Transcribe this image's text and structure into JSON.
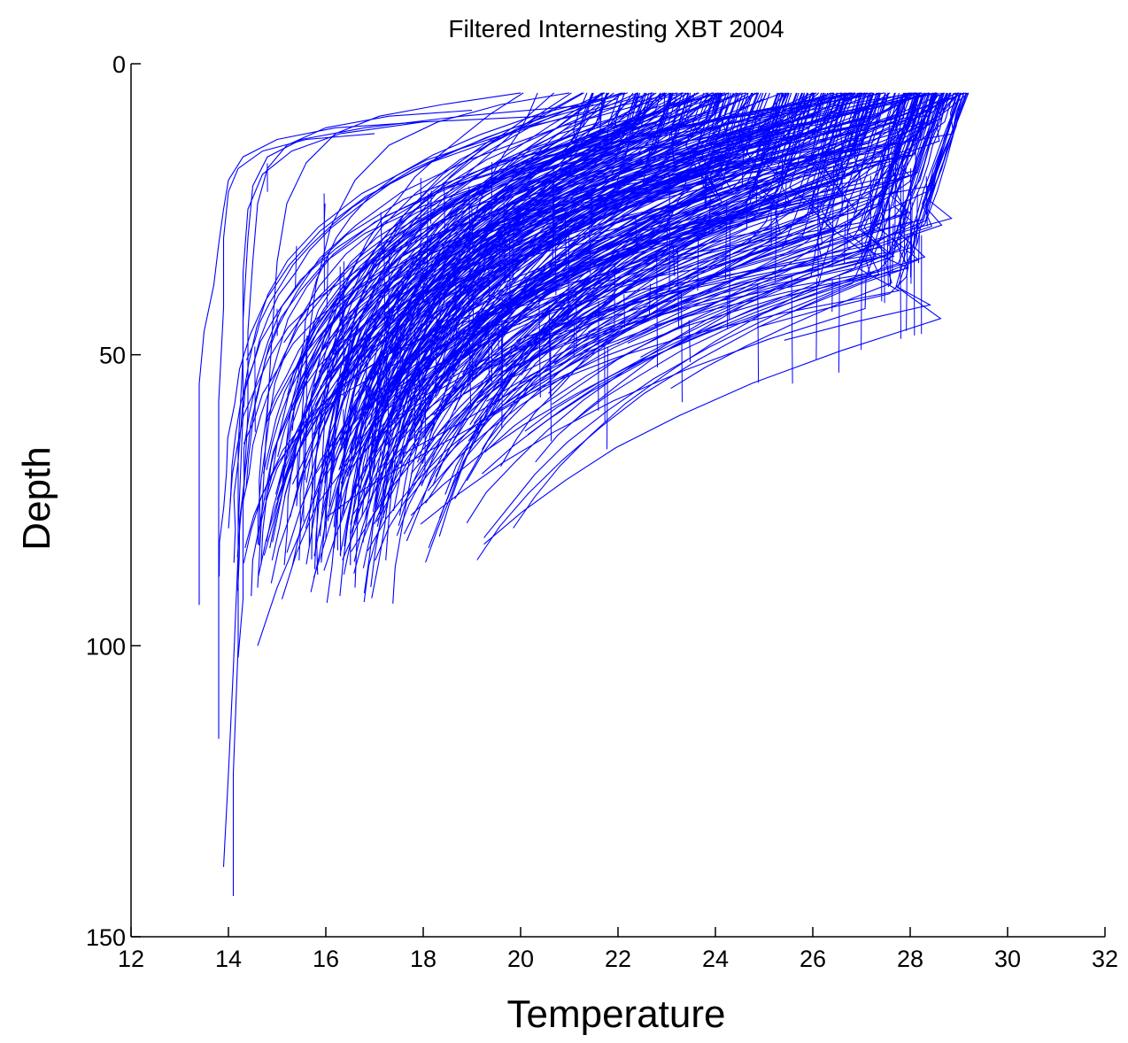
{
  "chart_data": {
    "type": "line",
    "title": "Filtered Internesting XBT 2004",
    "xlabel": "Temperature",
    "ylabel": "Depth",
    "xlim": [
      12,
      32
    ],
    "ylim": [
      0,
      150
    ],
    "y_reversed": true,
    "xticks": [
      12,
      14,
      16,
      18,
      20,
      22,
      24,
      26,
      28,
      30,
      32
    ],
    "yticks": [
      0,
      50,
      100,
      150
    ],
    "grid": false,
    "legend": "none",
    "line_color": "#0000ff",
    "series_count_estimate": 350,
    "series": [
      {
        "points": [
          [
            29.2,
            5
          ],
          [
            28.6,
            9
          ],
          [
            27.4,
            14
          ],
          [
            25.8,
            20
          ],
          [
            23.6,
            30
          ],
          [
            21.8,
            38
          ],
          [
            19.6,
            46
          ],
          [
            18.0,
            53
          ],
          [
            16.6,
            60
          ],
          [
            15.9,
            68
          ],
          [
            15.5,
            76
          ],
          [
            15.2,
            84
          ]
        ]
      },
      {
        "points": [
          [
            29.0,
            5
          ],
          [
            28.3,
            11
          ],
          [
            27.2,
            18
          ],
          [
            25.9,
            26
          ],
          [
            24.1,
            36
          ],
          [
            22.1,
            46
          ],
          [
            20.6,
            54
          ],
          [
            19.1,
            62
          ],
          [
            17.8,
            68
          ],
          [
            16.8,
            73
          ],
          [
            16.0,
            78
          ]
        ]
      },
      {
        "points": [
          [
            28.8,
            6
          ],
          [
            27.9,
            12
          ],
          [
            26.7,
            19
          ],
          [
            25.1,
            28
          ],
          [
            23.2,
            38
          ],
          [
            21.4,
            48
          ],
          [
            19.9,
            56
          ],
          [
            18.7,
            62
          ],
          [
            17.6,
            67
          ]
        ]
      },
      {
        "points": [
          [
            28.5,
            6
          ],
          [
            27.6,
            14
          ],
          [
            26.5,
            22
          ],
          [
            25.2,
            30
          ],
          [
            23.8,
            37
          ],
          [
            22.4,
            43
          ],
          [
            21.0,
            49
          ],
          [
            19.8,
            54
          ]
        ]
      },
      {
        "points": [
          [
            27.5,
            6
          ],
          [
            26.6,
            12
          ],
          [
            25.4,
            19
          ],
          [
            24.1,
            27
          ],
          [
            22.7,
            35
          ],
          [
            21.3,
            42
          ],
          [
            20.1,
            48
          ],
          [
            19.2,
            53
          ]
        ]
      },
      {
        "points": [
          [
            26.2,
            6
          ],
          [
            25.1,
            12
          ],
          [
            23.9,
            19
          ],
          [
            22.6,
            27
          ],
          [
            21.1,
            35
          ],
          [
            19.8,
            42
          ],
          [
            18.9,
            48
          ],
          [
            18.3,
            53
          ]
        ]
      },
      {
        "points": [
          [
            25.0,
            6
          ],
          [
            23.8,
            11
          ],
          [
            22.4,
            17
          ],
          [
            21.0,
            25
          ],
          [
            19.8,
            33
          ],
          [
            18.9,
            41
          ],
          [
            18.3,
            49
          ],
          [
            17.9,
            56
          ]
        ]
      },
      {
        "points": [
          [
            23.5,
            6
          ],
          [
            22.2,
            10
          ],
          [
            20.9,
            15
          ],
          [
            19.6,
            22
          ],
          [
            18.6,
            30
          ],
          [
            17.9,
            38
          ],
          [
            17.4,
            46
          ],
          [
            17.1,
            54
          ],
          [
            16.9,
            62
          ]
        ]
      },
      {
        "points": [
          [
            22.0,
            6
          ],
          [
            20.7,
            9
          ],
          [
            19.4,
            13
          ],
          [
            18.4,
            19
          ],
          [
            17.6,
            26
          ],
          [
            17.0,
            34
          ],
          [
            16.6,
            43
          ],
          [
            16.4,
            52
          ],
          [
            16.2,
            62
          ],
          [
            16.1,
            72
          ]
        ]
      },
      {
        "points": [
          [
            21.0,
            5
          ],
          [
            19.6,
            7
          ],
          [
            18.3,
            10
          ],
          [
            17.3,
            14
          ],
          [
            16.6,
            20
          ],
          [
            16.1,
            28
          ],
          [
            15.8,
            38
          ],
          [
            15.6,
            50
          ],
          [
            15.5,
            62
          ],
          [
            15.4,
            76
          ]
        ]
      },
      {
        "points": [
          [
            20.0,
            5
          ],
          [
            18.4,
            7
          ],
          [
            17.1,
            9
          ],
          [
            16.2,
            12
          ],
          [
            15.6,
            17
          ],
          [
            15.2,
            24
          ],
          [
            15.0,
            34
          ],
          [
            14.9,
            46
          ],
          [
            14.8,
            60
          ],
          [
            14.7,
            75
          ],
          [
            14.6,
            90
          ]
        ]
      },
      {
        "points": [
          [
            19.0,
            8
          ],
          [
            17.3,
            9
          ],
          [
            16.0,
            11
          ],
          [
            15.2,
            14
          ],
          [
            14.8,
            18
          ],
          [
            14.6,
            24
          ],
          [
            14.5,
            34
          ],
          [
            14.4,
            46
          ],
          [
            14.4,
            60
          ],
          [
            14.3,
            76
          ],
          [
            14.3,
            92
          ],
          [
            14.2,
            102
          ]
        ]
      },
      {
        "points": [
          [
            20.5,
            9
          ],
          [
            18.0,
            10
          ],
          [
            16.3,
            12
          ],
          [
            15.3,
            15
          ],
          [
            14.7,
            19
          ],
          [
            14.4,
            25
          ],
          [
            14.3,
            36
          ],
          [
            14.3,
            50
          ],
          [
            14.2,
            66
          ],
          [
            14.2,
            84
          ],
          [
            14.1,
            104
          ],
          [
            14.0,
            122
          ],
          [
            13.9,
            138
          ]
        ]
      },
      {
        "points": [
          [
            21.5,
            7
          ],
          [
            18.8,
            9
          ],
          [
            16.8,
            11
          ],
          [
            15.5,
            13
          ],
          [
            14.8,
            16
          ],
          [
            14.5,
            21
          ],
          [
            14.4,
            30
          ],
          [
            14.3,
            44
          ],
          [
            14.3,
            60
          ],
          [
            14.2,
            80
          ],
          [
            14.2,
            100
          ],
          [
            14.1,
            122
          ],
          [
            14.1,
            143
          ]
        ]
      },
      {
        "points": [
          [
            18.0,
            10
          ],
          [
            16.2,
            11
          ],
          [
            15.0,
            13
          ],
          [
            14.3,
            16
          ],
          [
            14.0,
            20
          ],
          [
            13.9,
            25
          ],
          [
            13.8,
            31
          ],
          [
            13.7,
            38
          ],
          [
            13.5,
            46
          ],
          [
            13.4,
            55
          ],
          [
            13.4,
            66
          ],
          [
            13.4,
            78
          ],
          [
            13.4,
            93
          ]
        ]
      },
      {
        "points": [
          [
            17.0,
            12
          ],
          [
            15.6,
            13
          ],
          [
            14.7,
            15
          ],
          [
            14.2,
            18
          ],
          [
            14.0,
            22
          ],
          [
            13.9,
            30
          ],
          [
            13.9,
            42
          ],
          [
            13.8,
            58
          ],
          [
            13.8,
            76
          ],
          [
            13.8,
            96
          ],
          [
            13.8,
            116
          ]
        ]
      },
      {
        "points": [
          [
            27.0,
            5
          ],
          [
            25.0,
            8
          ],
          [
            22.5,
            12
          ],
          [
            20.2,
            18
          ],
          [
            18.5,
            25
          ],
          [
            17.4,
            34
          ],
          [
            16.7,
            44
          ],
          [
            16.3,
            55
          ],
          [
            16.0,
            66
          ],
          [
            15.8,
            76
          ],
          [
            15.6,
            86
          ]
        ]
      },
      {
        "points": [
          [
            28.0,
            5
          ],
          [
            26.0,
            9
          ],
          [
            23.5,
            15
          ],
          [
            21.2,
            23
          ],
          [
            19.4,
            32
          ],
          [
            18.1,
            41
          ],
          [
            17.2,
            50
          ],
          [
            16.6,
            58
          ],
          [
            16.2,
            66
          ],
          [
            15.8,
            74
          ],
          [
            15.4,
            82
          ],
          [
            15.0,
            90
          ],
          [
            14.6,
            100
          ]
        ]
      },
      {
        "points": [
          [
            29.1,
            5
          ],
          [
            27.8,
            10
          ],
          [
            26.0,
            17
          ],
          [
            24.0,
            25
          ],
          [
            22.0,
            34
          ],
          [
            20.1,
            43
          ],
          [
            18.6,
            52
          ],
          [
            17.4,
            60
          ],
          [
            16.5,
            68
          ],
          [
            15.8,
            76
          ],
          [
            15.4,
            84
          ],
          [
            15.1,
            92
          ]
        ]
      },
      {
        "points": [
          [
            24.2,
            5
          ],
          [
            22.5,
            8
          ],
          [
            20.8,
            12
          ],
          [
            19.3,
            18
          ],
          [
            18.1,
            25
          ],
          [
            17.2,
            33
          ],
          [
            16.6,
            42
          ],
          [
            16.1,
            52
          ],
          [
            15.8,
            62
          ],
          [
            15.6,
            72
          ]
        ]
      },
      {
        "points": [
          [
            26.8,
            5
          ],
          [
            25.3,
            9
          ],
          [
            23.6,
            14
          ],
          [
            21.9,
            21
          ],
          [
            20.4,
            29
          ],
          [
            19.2,
            37
          ],
          [
            18.3,
            45
          ],
          [
            17.6,
            53
          ],
          [
            17.1,
            60
          ],
          [
            16.7,
            68
          ],
          [
            16.6,
            90
          ]
        ]
      },
      {
        "points": [
          [
            28.3,
            5
          ],
          [
            28.0,
            10
          ],
          [
            27.7,
            16
          ],
          [
            27.2,
            22
          ],
          [
            26.1,
            28
          ],
          [
            24.4,
            35
          ],
          [
            22.6,
            42
          ],
          [
            20.9,
            48
          ],
          [
            19.6,
            53
          ]
        ]
      },
      {
        "points": [
          [
            29.0,
            5
          ],
          [
            28.7,
            8
          ],
          [
            28.4,
            14
          ],
          [
            28.2,
            20
          ],
          [
            27.7,
            26
          ],
          [
            26.4,
            32
          ],
          [
            24.6,
            39
          ],
          [
            22.8,
            45
          ],
          [
            21.2,
            50
          ],
          [
            20.0,
            55
          ]
        ]
      },
      {
        "points": [
          [
            27.8,
            6
          ],
          [
            27.6,
            12
          ],
          [
            27.4,
            18
          ],
          [
            26.9,
            24
          ],
          [
            25.8,
            31
          ],
          [
            24.2,
            38
          ],
          [
            22.6,
            44
          ],
          [
            21.2,
            49
          ],
          [
            20.1,
            54
          ],
          [
            19.3,
            58
          ]
        ]
      },
      {
        "points": [
          [
            28.6,
            5
          ],
          [
            28.3,
            9
          ],
          [
            28.0,
            15
          ],
          [
            27.5,
            21
          ],
          [
            26.7,
            28
          ],
          [
            25.4,
            35
          ],
          [
            23.8,
            42
          ],
          [
            22.2,
            48
          ]
        ]
      }
    ]
  }
}
